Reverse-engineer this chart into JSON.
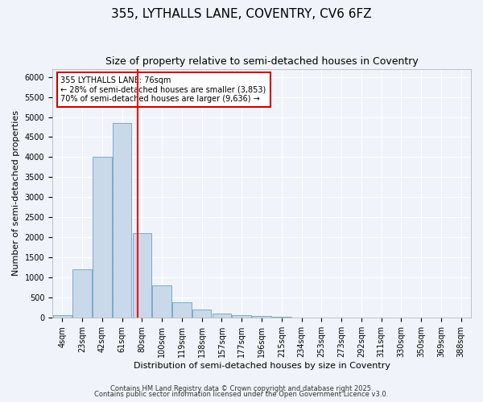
{
  "title": "355, LYTHALLS LANE, COVENTRY, CV6 6FZ",
  "subtitle": "Size of property relative to semi-detached houses in Coventry",
  "xlabel": "Distribution of semi-detached houses by size in Coventry",
  "ylabel": "Number of semi-detached properties",
  "bin_labels": [
    "4sqm",
    "23sqm",
    "42sqm",
    "61sqm",
    "80sqm",
    "100sqm",
    "119sqm",
    "138sqm",
    "157sqm",
    "177sqm",
    "196sqm",
    "215sqm",
    "234sqm",
    "253sqm",
    "273sqm",
    "292sqm",
    "311sqm",
    "330sqm",
    "350sqm",
    "369sqm",
    "388sqm"
  ],
  "bar_heights": [
    70,
    1200,
    4000,
    4850,
    2100,
    800,
    380,
    200,
    105,
    60,
    40,
    25,
    15,
    10,
    5,
    5,
    3,
    3,
    2,
    2,
    1
  ],
  "bar_color": "#c9d9ea",
  "bar_edge_color": "#7aaac8",
  "red_line_x": 3.8,
  "annotation_title": "355 LYTHALLS LANE: 76sqm",
  "annotation_line1": "← 28% of semi-detached houses are smaller (3,853)",
  "annotation_line2": "70% of semi-detached houses are larger (9,636) →",
  "annotation_box_color": "#ffffff",
  "annotation_box_edge": "#cc0000",
  "ylim": [
    0,
    6200
  ],
  "yticks": [
    0,
    500,
    1000,
    1500,
    2000,
    2500,
    3000,
    3500,
    4000,
    4500,
    5000,
    5500,
    6000
  ],
  "footer1": "Contains HM Land Registry data © Crown copyright and database right 2025.",
  "footer2": "Contains public sector information licensed under the Open Government Licence v3.0.",
  "background_color": "#f0f4fa",
  "plot_background": "#f0f4fa",
  "title_fontsize": 11,
  "subtitle_fontsize": 9,
  "axis_label_fontsize": 8,
  "tick_fontsize": 7,
  "footer_fontsize": 6
}
